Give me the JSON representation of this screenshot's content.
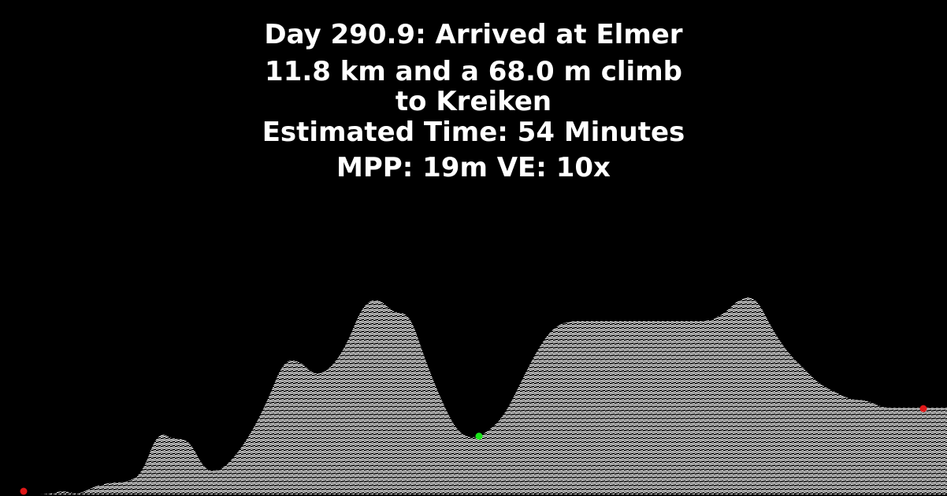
{
  "header": {
    "line1": "Day 290.9: Arrived at Elmer",
    "line2": "11.8 km and a 68.0 m climb",
    "line3": "to Kreiken",
    "line4": "Estimated Time: 54 Minutes",
    "line5": "MPP: 19m VE: 10x"
  },
  "colors": {
    "background": "#000000",
    "terrain_hatch": "#ffffff",
    "current_marker": "#19e619",
    "endpoint_marker": "#e01818"
  },
  "chart_data": {
    "type": "area",
    "x": [
      0,
      20,
      40,
      60,
      80,
      100,
      120,
      140,
      160,
      180,
      200,
      220,
      240,
      260,
      280,
      300,
      320,
      340,
      360,
      380,
      400,
      420,
      440,
      460,
      480,
      500,
      520,
      540,
      560,
      580,
      600,
      620,
      640,
      660,
      680,
      700,
      720,
      740,
      760,
      780,
      800,
      820,
      840,
      860,
      880,
      900,
      920,
      940,
      960,
      980,
      1000,
      1020,
      1040,
      1060,
      1080,
      1100,
      1120,
      1140,
      1160,
      1180,
      1200
    ],
    "values": [
      0,
      0,
      0,
      0,
      0.5,
      0,
      1,
      1.5,
      1.5,
      2.5,
      8,
      7,
      7,
      3,
      3,
      5,
      8,
      12,
      17,
      17,
      15,
      16,
      19,
      24,
      25,
      23,
      23,
      17,
      12,
      8,
      7,
      8,
      10,
      14,
      18,
      21,
      22,
      22,
      22,
      22,
      22,
      22,
      22,
      22,
      22,
      22,
      23,
      25,
      25,
      21,
      18,
      16,
      14,
      13,
      12,
      12,
      11,
      11,
      11,
      11,
      11
    ],
    "markers": [
      {
        "x": 30,
        "value": 0.4,
        "role": "start"
      },
      {
        "x": 608,
        "value": 7.4,
        "role": "current"
      },
      {
        "x": 1172,
        "value": 10.9,
        "role": "end"
      }
    ],
    "ylim": [
      0,
      30
    ],
    "xlim": [
      0,
      1202
    ],
    "title": "",
    "xlabel": "",
    "ylabel": "",
    "grid": false,
    "legend": "none"
  }
}
